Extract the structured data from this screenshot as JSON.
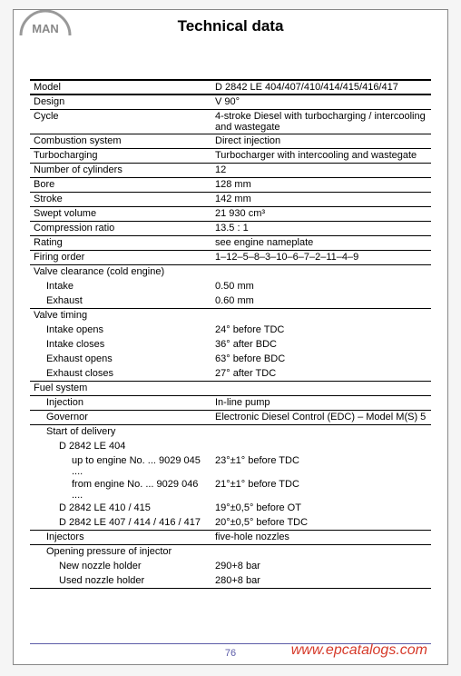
{
  "title": "Technical data",
  "logo_text": "MAN",
  "page_number": "76",
  "watermark": "www.epcatalogs.com",
  "colors": {
    "page_bg": "#ffffff",
    "body_bg": "#f5f5f5",
    "border": "#000000",
    "footer": "#5c5ca8",
    "watermark": "#d63a2a"
  },
  "rows": [
    {
      "l": "Model",
      "v": "D 2842 LE 404/407/410/414/415/416/417",
      "cls": "hd"
    },
    {
      "l": "Design",
      "v": "V 90°"
    },
    {
      "l": "Cycle",
      "v": "4-stroke Diesel with turbocharging / intercooling and wastegate"
    },
    {
      "l": "Combustion system",
      "v": "Direct injection"
    },
    {
      "l": "Turbocharging",
      "v": "Turbocharger with intercooling and wastegate"
    },
    {
      "l": "Number of cylinders",
      "v": "12"
    },
    {
      "l": "Bore",
      "v": "128 mm"
    },
    {
      "l": "Stroke",
      "v": "142 mm"
    },
    {
      "l": "Swept volume",
      "v": "21 930 cm³"
    },
    {
      "l": "Compression ratio",
      "v": "13.5 : 1"
    },
    {
      "l": "Rating",
      "v": "see engine nameplate"
    },
    {
      "l": "Firing order",
      "v": "1–12–5–8–3–10–6–7–2–11–4–9"
    },
    {
      "l": "Valve clearance (cold engine)",
      "v": "",
      "cls": "noborder"
    },
    {
      "l": "Intake",
      "v": "0.50 mm",
      "ind": "i1",
      "cls": "noborder"
    },
    {
      "l": "Exhaust",
      "v": "0.60 mm",
      "ind": "i1"
    },
    {
      "l": "Valve timing",
      "v": "",
      "cls": "noborder"
    },
    {
      "l": "Intake opens",
      "v": "24° before TDC",
      "ind": "i1",
      "cls": "noborder"
    },
    {
      "l": "Intake closes",
      "v": "36° after BDC",
      "ind": "i1",
      "cls": "noborder"
    },
    {
      "l": "Exhaust opens",
      "v": "63° before BDC",
      "ind": "i1",
      "cls": "noborder"
    },
    {
      "l": "Exhaust closes",
      "v": "27° after TDC",
      "ind": "i1"
    },
    {
      "l": "Fuel system",
      "v": ""
    },
    {
      "l": "Injection",
      "v": "In-line pump",
      "ind": "i1"
    },
    {
      "l": "Governor",
      "v": "Electronic Diesel Control (EDC) – Model M(S) 5",
      "ind": "i1"
    },
    {
      "l": "Start of delivery",
      "v": "",
      "ind": "i1",
      "cls": "noborder"
    },
    {
      "l": "D 2842 LE 404",
      "v": "",
      "ind": "i2",
      "cls": "noborder"
    },
    {
      "l": "up to engine No. ... 9029 045 ....",
      "v": "23°±1° before TDC",
      "ind": "i3",
      "cls": "noborder"
    },
    {
      "l": "from engine No. ... 9029 046 ....",
      "v": "21°±1° before TDC",
      "ind": "i3",
      "cls": "noborder"
    },
    {
      "l": "D 2842 LE 410 / 415",
      "v": "19°±0,5° before OT",
      "ind": "i2",
      "cls": "noborder"
    },
    {
      "l": "D 2842 LE 407 / 414 / 416 / 417",
      "v": "20°±0,5° before TDC",
      "ind": "i2"
    },
    {
      "l": "Injectors",
      "v": "five-hole nozzles",
      "ind": "i1"
    },
    {
      "l": "Opening pressure of injector",
      "v": "",
      "ind": "i1",
      "cls": "noborder"
    },
    {
      "l": "New nozzle holder",
      "v": "290+8 bar",
      "ind": "i2",
      "cls": "noborder"
    },
    {
      "l": "Used nozzle holder",
      "v": "280+8 bar",
      "ind": "i2"
    }
  ]
}
